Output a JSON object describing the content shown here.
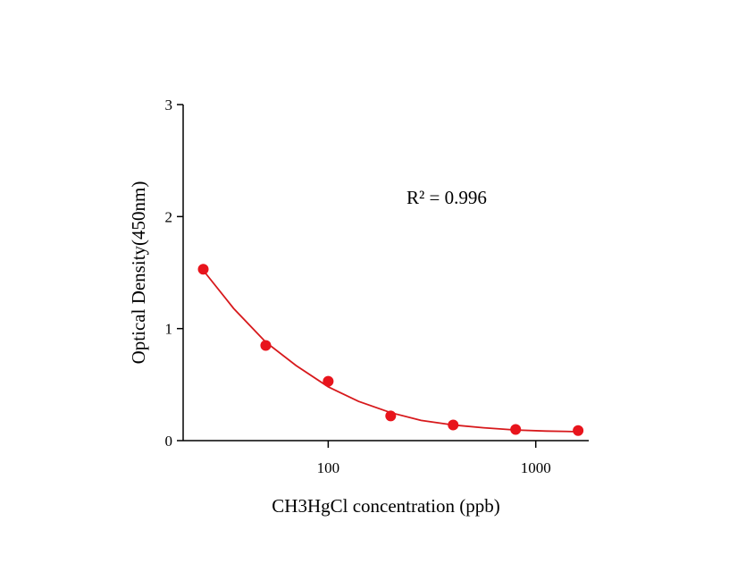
{
  "chart_data": {
    "type": "scatter",
    "title": "",
    "xlabel": "CH3HgCl concentration (ppb)",
    "ylabel": "Optical Density(450nm)",
    "x_scale": "log",
    "xlim": [
      20,
      1800
    ],
    "ylim": [
      0,
      3
    ],
    "x_ticks": [
      100,
      1000
    ],
    "x_tick_labels": [
      "100",
      "1000"
    ],
    "y_ticks": [
      0,
      1,
      2,
      3
    ],
    "y_tick_labels": [
      "0",
      "1",
      "2",
      "3"
    ],
    "grid": false,
    "annotation": "R² = 0.996",
    "colors": {
      "series": "#e8141c",
      "curve": "#d7191c",
      "axis": "#000000"
    },
    "series": [
      {
        "x": [
          25,
          50,
          100,
          200,
          400,
          800,
          1600
        ],
        "y": [
          1.53,
          0.85,
          0.53,
          0.22,
          0.14,
          0.1,
          0.09
        ]
      }
    ],
    "fit_curve": {
      "x": [
        25,
        35,
        50,
        70,
        100,
        140,
        200,
        280,
        400,
        560,
        800,
        1120,
        1600
      ],
      "y": [
        1.52,
        1.18,
        0.88,
        0.67,
        0.48,
        0.35,
        0.25,
        0.18,
        0.14,
        0.115,
        0.095,
        0.085,
        0.08
      ]
    }
  }
}
